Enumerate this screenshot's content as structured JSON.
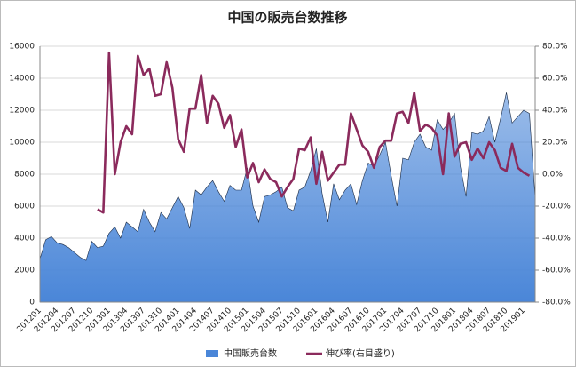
{
  "chart_data": {
    "type": "combo",
    "title": "中国の販売台数推移",
    "categories": [
      "201201",
      null,
      null,
      "201204",
      null,
      null,
      "201207",
      null,
      null,
      "201210",
      null,
      null,
      "201301",
      null,
      null,
      "201304",
      null,
      null,
      "201307",
      null,
      null,
      "201310",
      null,
      null,
      "201401",
      null,
      null,
      "201404",
      null,
      null,
      "201407",
      null,
      null,
      "201410",
      null,
      null,
      "201501",
      null,
      null,
      "201504",
      null,
      null,
      "201507",
      null,
      null,
      "201510",
      null,
      null,
      "201601",
      null,
      null,
      "201604",
      null,
      null,
      "201607",
      null,
      null,
      "201610",
      null,
      null,
      "201701",
      null,
      null,
      "201704",
      null,
      null,
      "201707",
      null,
      null,
      "201710",
      null,
      null,
      "201801",
      null,
      null,
      "201804",
      null,
      null,
      "201807",
      null,
      null,
      "201810",
      null,
      null,
      "201901",
      null,
      null
    ],
    "series": [
      {
        "name": "中国販売台数",
        "type": "area",
        "color": "#4a86d8",
        "values": [
          2700,
          3900,
          4100,
          3700,
          3600,
          3400,
          3100,
          2800,
          2600,
          3800,
          3400,
          3500,
          4300,
          4700,
          4000,
          5000,
          4700,
          4400,
          5800,
          5000,
          4400,
          5600,
          5200,
          5900,
          6600,
          5900,
          4600,
          7000,
          6700,
          7200,
          7600,
          6900,
          6300,
          7300,
          7000,
          7000,
          8400,
          6000,
          5000,
          6600,
          6700,
          6900,
          7200,
          5900,
          5700,
          7000,
          7200,
          8200,
          9600,
          6800,
          5000,
          7400,
          6400,
          7000,
          7400,
          6100,
          7600,
          8700,
          8500,
          9200,
          10000,
          7900,
          6000,
          9000,
          8900,
          10000,
          10500,
          9700,
          9500,
          11400,
          10800,
          11200,
          11800,
          8500,
          6600,
          10600,
          10500,
          10700,
          11600,
          10000,
          11500,
          13100,
          11200,
          11600,
          12000,
          11800,
          6500
        ]
      },
      {
        "name": "伸び率(右目盛り)",
        "type": "line",
        "axis": "y2",
        "color": "#8b2a5c",
        "values": [
          null,
          null,
          null,
          null,
          null,
          null,
          null,
          null,
          null,
          null,
          -22,
          -24,
          76,
          0,
          20,
          30,
          25,
          74,
          62,
          66,
          49,
          50,
          70,
          54,
          22,
          14,
          41,
          41,
          62,
          32,
          49,
          44,
          29,
          37,
          17,
          28,
          -2,
          7,
          -5,
          3,
          -3,
          -5,
          -14,
          -8,
          -3,
          16,
          15,
          23,
          -6,
          14,
          -4,
          1,
          6,
          6,
          38,
          28,
          18,
          14,
          4,
          17,
          21,
          21,
          38,
          39,
          32,
          51,
          27,
          31,
          29,
          24,
          0,
          38,
          11,
          19,
          20,
          9,
          16,
          10,
          20,
          15,
          4,
          2,
          19,
          4,
          1,
          -1,
          null
        ]
      }
    ],
    "ylim": [
      0,
      16000
    ],
    "yticks": [
      0,
      2000,
      4000,
      6000,
      8000,
      10000,
      12000,
      14000,
      16000
    ],
    "y2lim": [
      -80,
      80
    ],
    "y2ticks": [
      {
        "value": -80,
        "label": "-80.0%"
      },
      {
        "value": -60,
        "label": "-60.0%"
      },
      {
        "value": -40,
        "label": "-40.0%"
      },
      {
        "value": -20,
        "label": "-20.0%"
      },
      {
        "value": 0,
        "label": "0.0%"
      },
      {
        "value": 20,
        "label": "20.0%"
      },
      {
        "value": 40,
        "label": "40.0%"
      },
      {
        "value": 60,
        "label": "60.0%"
      },
      {
        "value": 80,
        "label": "80.0%"
      }
    ],
    "grid": true,
    "legend": "bottom"
  }
}
